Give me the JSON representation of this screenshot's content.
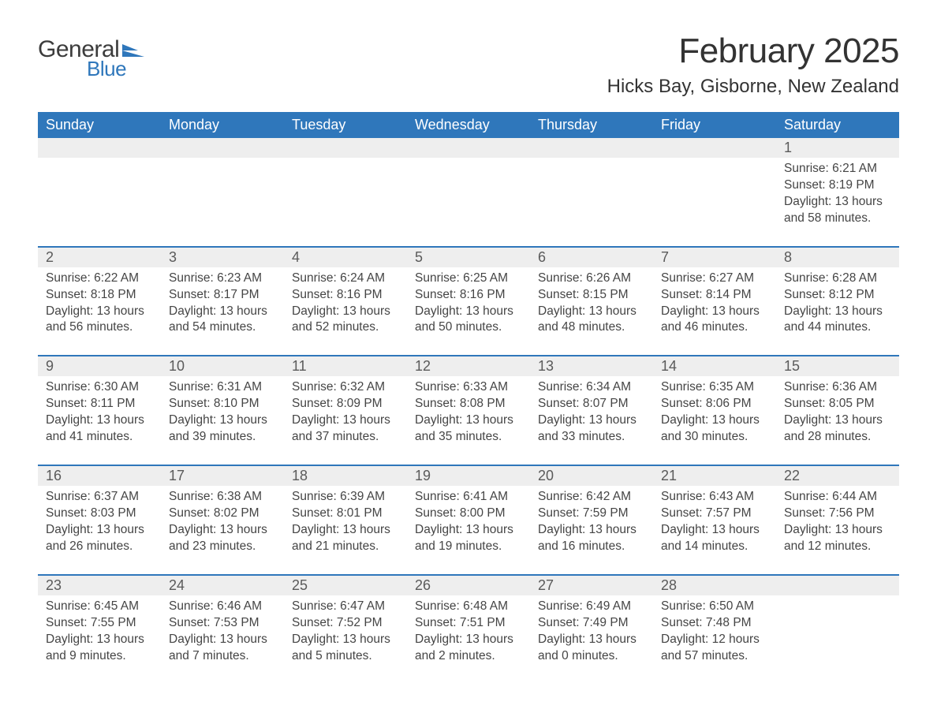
{
  "logo": {
    "text1": "General",
    "text2": "Blue"
  },
  "title": "February 2025",
  "location": "Hicks Bay, Gisborne, New Zealand",
  "colors": {
    "header_bg": "#2f77bb",
    "daynum_bg": "#eeeeee",
    "week_border": "#2f77bb",
    "text_main": "#333333",
    "text_muted": "#5a5a5a",
    "background": "#ffffff"
  },
  "weekdays": [
    "Sunday",
    "Monday",
    "Tuesday",
    "Wednesday",
    "Thursday",
    "Friday",
    "Saturday"
  ],
  "weeks": [
    {
      "nums": [
        "",
        "",
        "",
        "",
        "",
        "",
        "1"
      ],
      "cells": [
        null,
        null,
        null,
        null,
        null,
        null,
        {
          "sunrise": "Sunrise: 6:21 AM",
          "sunset": "Sunset: 8:19 PM",
          "daylight1": "Daylight: 13 hours",
          "daylight2": "and 58 minutes."
        }
      ]
    },
    {
      "nums": [
        "2",
        "3",
        "4",
        "5",
        "6",
        "7",
        "8"
      ],
      "cells": [
        {
          "sunrise": "Sunrise: 6:22 AM",
          "sunset": "Sunset: 8:18 PM",
          "daylight1": "Daylight: 13 hours",
          "daylight2": "and 56 minutes."
        },
        {
          "sunrise": "Sunrise: 6:23 AM",
          "sunset": "Sunset: 8:17 PM",
          "daylight1": "Daylight: 13 hours",
          "daylight2": "and 54 minutes."
        },
        {
          "sunrise": "Sunrise: 6:24 AM",
          "sunset": "Sunset: 8:16 PM",
          "daylight1": "Daylight: 13 hours",
          "daylight2": "and 52 minutes."
        },
        {
          "sunrise": "Sunrise: 6:25 AM",
          "sunset": "Sunset: 8:16 PM",
          "daylight1": "Daylight: 13 hours",
          "daylight2": "and 50 minutes."
        },
        {
          "sunrise": "Sunrise: 6:26 AM",
          "sunset": "Sunset: 8:15 PM",
          "daylight1": "Daylight: 13 hours",
          "daylight2": "and 48 minutes."
        },
        {
          "sunrise": "Sunrise: 6:27 AM",
          "sunset": "Sunset: 8:14 PM",
          "daylight1": "Daylight: 13 hours",
          "daylight2": "and 46 minutes."
        },
        {
          "sunrise": "Sunrise: 6:28 AM",
          "sunset": "Sunset: 8:12 PM",
          "daylight1": "Daylight: 13 hours",
          "daylight2": "and 44 minutes."
        }
      ]
    },
    {
      "nums": [
        "9",
        "10",
        "11",
        "12",
        "13",
        "14",
        "15"
      ],
      "cells": [
        {
          "sunrise": "Sunrise: 6:30 AM",
          "sunset": "Sunset: 8:11 PM",
          "daylight1": "Daylight: 13 hours",
          "daylight2": "and 41 minutes."
        },
        {
          "sunrise": "Sunrise: 6:31 AM",
          "sunset": "Sunset: 8:10 PM",
          "daylight1": "Daylight: 13 hours",
          "daylight2": "and 39 minutes."
        },
        {
          "sunrise": "Sunrise: 6:32 AM",
          "sunset": "Sunset: 8:09 PM",
          "daylight1": "Daylight: 13 hours",
          "daylight2": "and 37 minutes."
        },
        {
          "sunrise": "Sunrise: 6:33 AM",
          "sunset": "Sunset: 8:08 PM",
          "daylight1": "Daylight: 13 hours",
          "daylight2": "and 35 minutes."
        },
        {
          "sunrise": "Sunrise: 6:34 AM",
          "sunset": "Sunset: 8:07 PM",
          "daylight1": "Daylight: 13 hours",
          "daylight2": "and 33 minutes."
        },
        {
          "sunrise": "Sunrise: 6:35 AM",
          "sunset": "Sunset: 8:06 PM",
          "daylight1": "Daylight: 13 hours",
          "daylight2": "and 30 minutes."
        },
        {
          "sunrise": "Sunrise: 6:36 AM",
          "sunset": "Sunset: 8:05 PM",
          "daylight1": "Daylight: 13 hours",
          "daylight2": "and 28 minutes."
        }
      ]
    },
    {
      "nums": [
        "16",
        "17",
        "18",
        "19",
        "20",
        "21",
        "22"
      ],
      "cells": [
        {
          "sunrise": "Sunrise: 6:37 AM",
          "sunset": "Sunset: 8:03 PM",
          "daylight1": "Daylight: 13 hours",
          "daylight2": "and 26 minutes."
        },
        {
          "sunrise": "Sunrise: 6:38 AM",
          "sunset": "Sunset: 8:02 PM",
          "daylight1": "Daylight: 13 hours",
          "daylight2": "and 23 minutes."
        },
        {
          "sunrise": "Sunrise: 6:39 AM",
          "sunset": "Sunset: 8:01 PM",
          "daylight1": "Daylight: 13 hours",
          "daylight2": "and 21 minutes."
        },
        {
          "sunrise": "Sunrise: 6:41 AM",
          "sunset": "Sunset: 8:00 PM",
          "daylight1": "Daylight: 13 hours",
          "daylight2": "and 19 minutes."
        },
        {
          "sunrise": "Sunrise: 6:42 AM",
          "sunset": "Sunset: 7:59 PM",
          "daylight1": "Daylight: 13 hours",
          "daylight2": "and 16 minutes."
        },
        {
          "sunrise": "Sunrise: 6:43 AM",
          "sunset": "Sunset: 7:57 PM",
          "daylight1": "Daylight: 13 hours",
          "daylight2": "and 14 minutes."
        },
        {
          "sunrise": "Sunrise: 6:44 AM",
          "sunset": "Sunset: 7:56 PM",
          "daylight1": "Daylight: 13 hours",
          "daylight2": "and 12 minutes."
        }
      ]
    },
    {
      "nums": [
        "23",
        "24",
        "25",
        "26",
        "27",
        "28",
        ""
      ],
      "cells": [
        {
          "sunrise": "Sunrise: 6:45 AM",
          "sunset": "Sunset: 7:55 PM",
          "daylight1": "Daylight: 13 hours",
          "daylight2": "and 9 minutes."
        },
        {
          "sunrise": "Sunrise: 6:46 AM",
          "sunset": "Sunset: 7:53 PM",
          "daylight1": "Daylight: 13 hours",
          "daylight2": "and 7 minutes."
        },
        {
          "sunrise": "Sunrise: 6:47 AM",
          "sunset": "Sunset: 7:52 PM",
          "daylight1": "Daylight: 13 hours",
          "daylight2": "and 5 minutes."
        },
        {
          "sunrise": "Sunrise: 6:48 AM",
          "sunset": "Sunset: 7:51 PM",
          "daylight1": "Daylight: 13 hours",
          "daylight2": "and 2 minutes."
        },
        {
          "sunrise": "Sunrise: 6:49 AM",
          "sunset": "Sunset: 7:49 PM",
          "daylight1": "Daylight: 13 hours",
          "daylight2": "and 0 minutes."
        },
        {
          "sunrise": "Sunrise: 6:50 AM",
          "sunset": "Sunset: 7:48 PM",
          "daylight1": "Daylight: 12 hours",
          "daylight2": "and 57 minutes."
        },
        null
      ]
    }
  ]
}
